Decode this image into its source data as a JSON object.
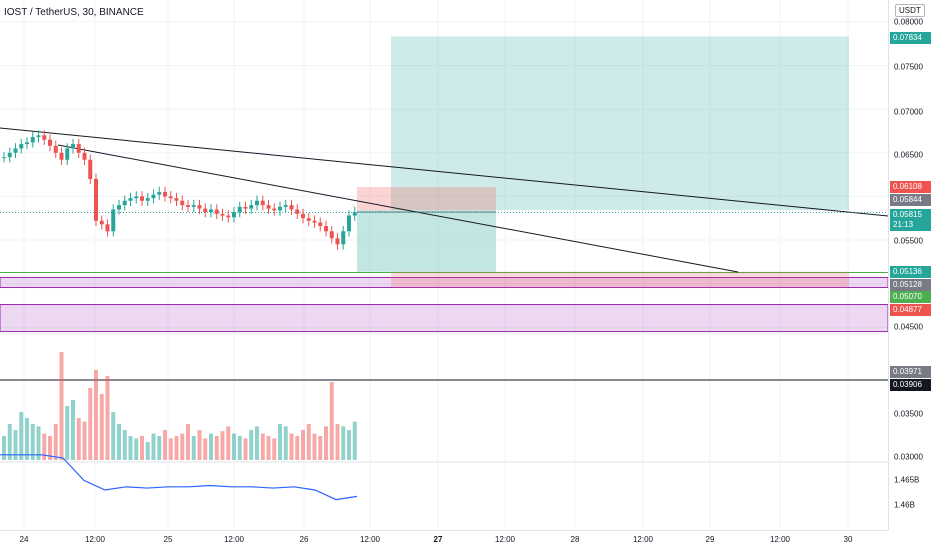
{
  "header": {
    "title": "IOST / TetherUS, 30, BINANCE"
  },
  "price_axis": {
    "currency": "USDT",
    "ticks": [
      "0.08000",
      "0.07500",
      "0.07000",
      "0.06500",
      "0.05500",
      "0.04500",
      "0.03500",
      "0.03000"
    ],
    "labels": [
      {
        "text": "0.07834",
        "color": "#26a69a"
      },
      {
        "text": "0.06108",
        "color": "#ef5350"
      },
      {
        "text": "0.05844",
        "color": "#787b86"
      },
      {
        "text": "0.05815",
        "sub": "21:13",
        "color": "#26a69a"
      },
      {
        "text": "0.05136",
        "color": "#26a69a"
      },
      {
        "text": "0.05128",
        "color": "#787b86"
      },
      {
        "text": "0.05070",
        "color": "#4caf50"
      },
      {
        "text": "0.04877",
        "color": "#ef5350"
      },
      {
        "text": "0.03971",
        "color": "#787b86"
      },
      {
        "text": "0.03906",
        "color": "#131722"
      }
    ]
  },
  "indicator_axis": {
    "ticks": [
      "1.465B",
      "1.46B"
    ]
  },
  "time_axis": {
    "labels": [
      {
        "text": "24",
        "bold": false
      },
      {
        "text": "12:00",
        "bold": false
      },
      {
        "text": "25",
        "bold": false
      },
      {
        "text": "12:00",
        "bold": false
      },
      {
        "text": "26",
        "bold": false
      },
      {
        "text": "12:00",
        "bold": false
      },
      {
        "text": "27",
        "bold": true
      },
      {
        "text": "12:00",
        "bold": false
      },
      {
        "text": "28",
        "bold": false
      },
      {
        "text": "12:00",
        "bold": false
      },
      {
        "text": "29",
        "bold": false
      },
      {
        "text": "12:00",
        "bold": false
      },
      {
        "text": "30",
        "bold": false
      }
    ]
  },
  "colors": {
    "up": "#26a69a",
    "down": "#ef5350",
    "obv": "#2962ff",
    "zone": "#9c27b0",
    "profit": "#26a69a",
    "loss": "#ef5350"
  },
  "chart_data": {
    "type": "candlestick",
    "symbol": "IOST / TetherUS",
    "interval": "30",
    "exchange": "BINANCE",
    "last_price": 0.05815,
    "countdown": "21:13",
    "y_range": [
      0.03,
      0.08
    ],
    "long_position": {
      "entry": 0.05844,
      "target": 0.07834,
      "stop": 0.05136
    },
    "long_position_2": {
      "entry": 0.0507,
      "target": 0.06108,
      "stop": 0.04877
    },
    "zones": [
      [
        0.04955,
        0.0507
      ],
      [
        0.0445,
        0.0476
      ]
    ],
    "horizontal_lines": [
      0.05128,
      0.03971,
      0.03906
    ],
    "trendlines": [
      {
        "from": [
          "24 00:00",
          0.068
        ],
        "to": [
          "30 12:00",
          0.0575
        ]
      },
      {
        "from": [
          "24 09:00",
          0.0665
        ],
        "to": [
          "29 07:00",
          0.0513
        ]
      }
    ],
    "ohlc_close_path": [
      0.0645,
      0.065,
      0.0655,
      0.066,
      0.0662,
      0.0668,
      0.067,
      0.0665,
      0.0658,
      0.065,
      0.0642,
      0.0655,
      0.066,
      0.065,
      0.0642,
      0.062,
      0.0572,
      0.0568,
      0.056,
      0.0585,
      0.059,
      0.0595,
      0.0598,
      0.06,
      0.0595,
      0.0598,
      0.0602,
      0.0605,
      0.06,
      0.0598,
      0.0595,
      0.059,
      0.0588,
      0.059,
      0.0586,
      0.0582,
      0.0585,
      0.058,
      0.0578,
      0.0576,
      0.0582,
      0.0588,
      0.0586,
      0.059,
      0.0595,
      0.059,
      0.0586,
      0.0584,
      0.0588,
      0.059,
      0.0585,
      0.058,
      0.0575,
      0.0572,
      0.057,
      0.0566,
      0.056,
      0.0552,
      0.0545,
      0.056,
      0.0578,
      0.0582
    ],
    "volume_series": [
      0.2,
      0.3,
      0.25,
      0.4,
      0.35,
      0.3,
      0.28,
      0.22,
      0.2,
      0.3,
      0.9,
      0.45,
      0.5,
      0.35,
      0.32,
      0.6,
      0.75,
      0.55,
      0.7,
      0.4,
      0.3,
      0.25,
      0.2,
      0.18,
      0.2,
      0.15,
      0.22,
      0.2,
      0.25,
      0.18,
      0.2,
      0.22,
      0.3,
      0.2,
      0.25,
      0.18,
      0.22,
      0.2,
      0.24,
      0.28,
      0.22,
      0.2,
      0.18,
      0.25,
      0.28,
      0.22,
      0.2,
      0.18,
      0.3,
      0.28,
      0.22,
      0.2,
      0.25,
      0.3,
      0.22,
      0.2,
      0.28,
      0.65,
      0.3,
      0.28,
      0.25,
      0.32
    ],
    "indicator": {
      "name": "OBV",
      "values_B": [
        1.468,
        1.468,
        1.468,
        1.4675,
        1.464,
        1.4625,
        1.463,
        1.4628,
        1.463,
        1.463,
        1.4632,
        1.463,
        1.463,
        1.4628,
        1.463,
        1.4625,
        1.461,
        1.4615
      ]
    }
  }
}
